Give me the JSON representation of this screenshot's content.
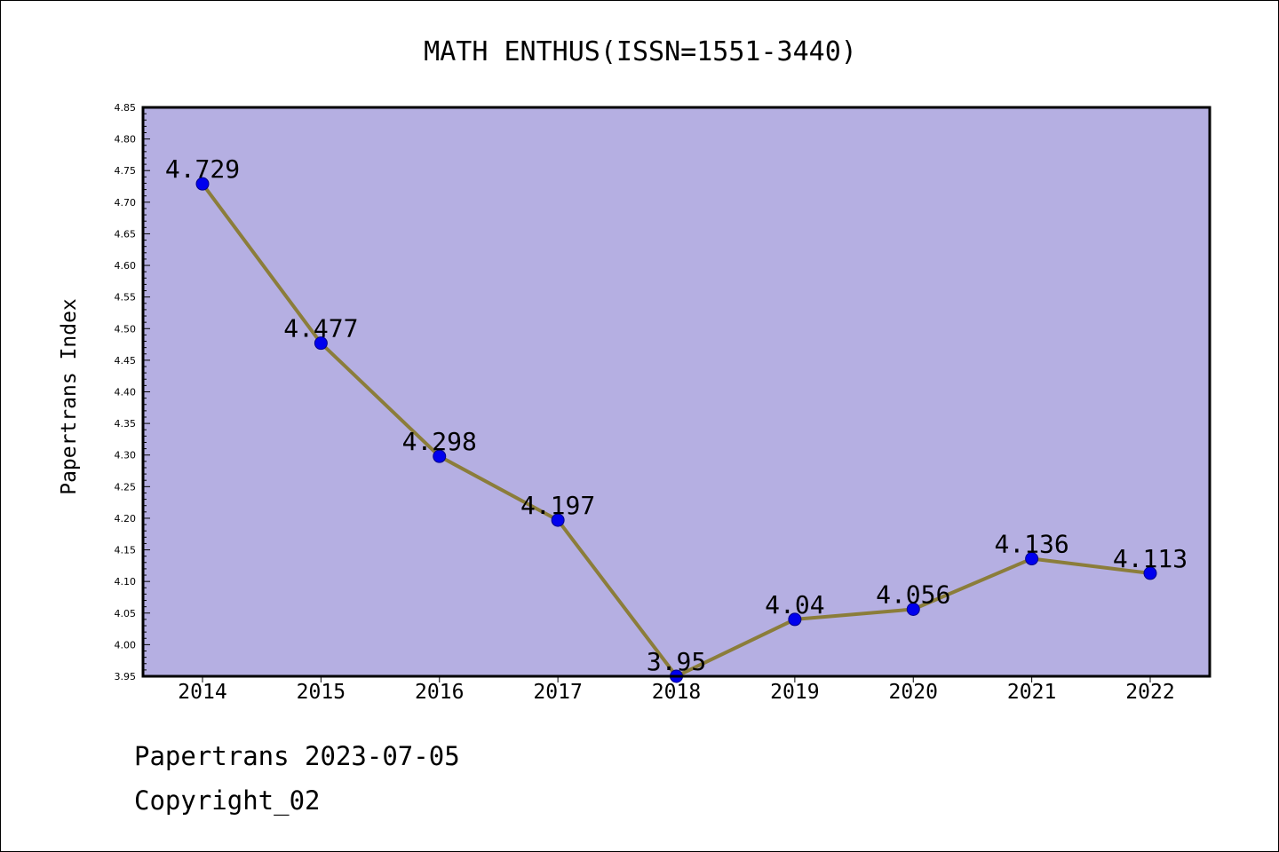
{
  "chart_data": {
    "type": "line",
    "title": "MATH ENTHUS(ISSN=1551-3440)",
    "xlabel": "",
    "ylabel": "Papertrans Index",
    "categories": [
      "2014",
      "2015",
      "2016",
      "2017",
      "2018",
      "2019",
      "2020",
      "2021",
      "2022"
    ],
    "series": [
      {
        "values": [
          4.729,
          4.477,
          4.298,
          4.197,
          3.95,
          4.04,
          4.056,
          4.136,
          4.113
        ],
        "labels": [
          "4.729",
          "4.477",
          "4.298",
          "4.197",
          "3.95",
          "4.04",
          "4.056",
          "4.136",
          "4.113"
        ]
      }
    ],
    "ylim": [
      3.95,
      4.85
    ],
    "yticks": [
      "3.95",
      "4.00",
      "4.05",
      "4.10",
      "4.15",
      "4.20",
      "4.25",
      "4.30",
      "4.35",
      "4.40",
      "4.45",
      "4.50",
      "4.55",
      "4.60",
      "4.65",
      "4.70",
      "4.75",
      "4.80",
      "4.85"
    ],
    "grid": false,
    "legend": "none",
    "colors": {
      "plot_background": "#b5afe2",
      "line": "#8b7d3a",
      "marker": "#0000ee",
      "marker_edge": "#00008b"
    }
  },
  "footer": {
    "line1": "Papertrans 2023-07-05",
    "line2": "Copyright_02"
  }
}
